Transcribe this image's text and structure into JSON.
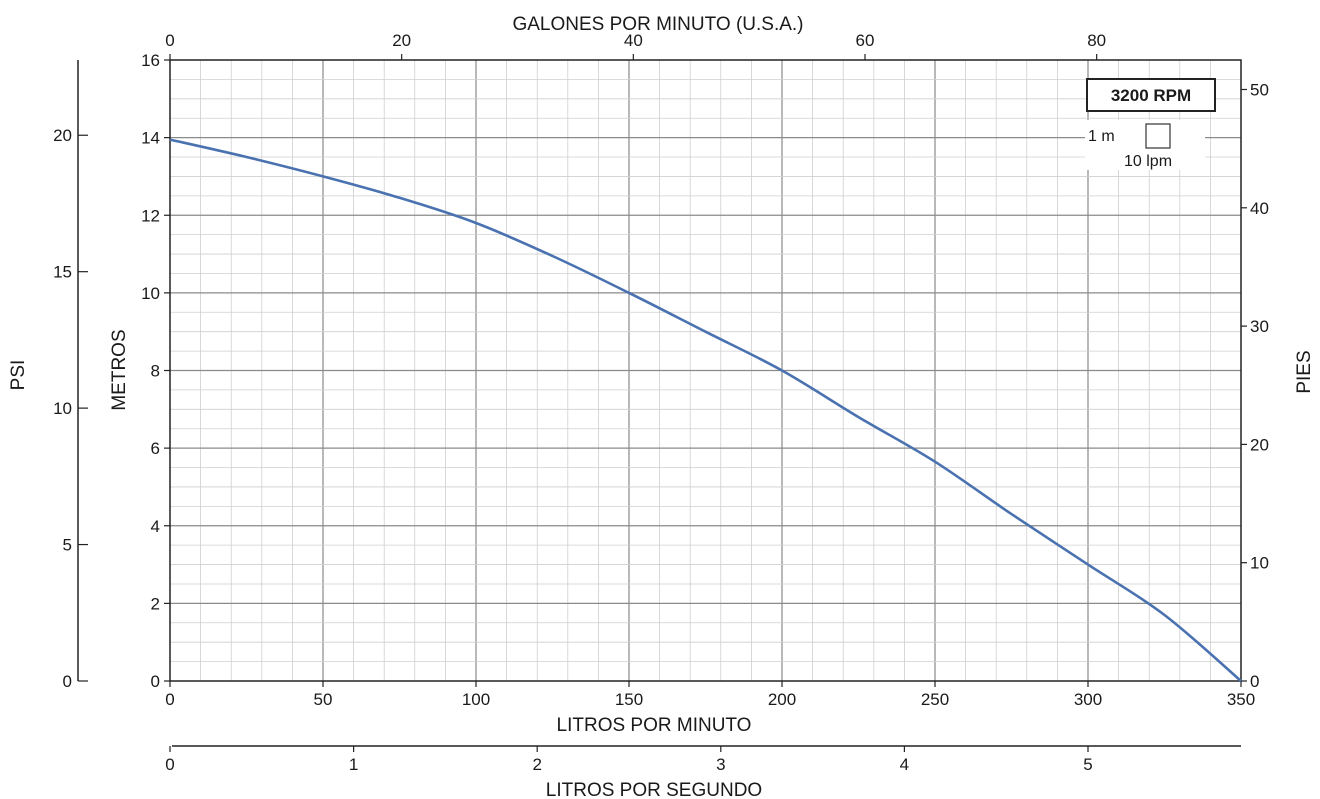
{
  "chart_data": {
    "type": "line",
    "rpm_label": "3200 RPM",
    "legend": {
      "meters": "1 m",
      "lpm": "10 lpm"
    },
    "x_bottom": {
      "label": "LITROS POR MINUTO",
      "range": [
        0,
        350
      ],
      "ticks": [
        "0",
        "50",
        "100",
        "150",
        "200",
        "250",
        "300",
        "350"
      ]
    },
    "x_top": {
      "label": "GALONES POR MINUTO (U.S.A.)",
      "ticks": [
        "0",
        "20",
        "40",
        "60",
        "80"
      ]
    },
    "x_lps": {
      "label": "LITROS POR SEGUNDO",
      "ticks": [
        "0",
        "1",
        "2",
        "3",
        "4",
        "5"
      ]
    },
    "y_left": {
      "label": "METROS",
      "range": [
        0,
        16
      ],
      "ticks": [
        "0",
        "2",
        "4",
        "6",
        "8",
        "10",
        "12",
        "14",
        "16"
      ]
    },
    "y_psi": {
      "label": "PSI",
      "ticks": [
        "0",
        "5",
        "10",
        "15",
        "20"
      ]
    },
    "y_right": {
      "label": "PIES",
      "ticks": [
        "0",
        "10",
        "20",
        "30",
        "40",
        "50"
      ]
    },
    "series": [
      {
        "color": "#4a72b0",
        "points": [
          [
            0,
            13.95
          ],
          [
            25,
            13.5
          ],
          [
            50,
            13.0
          ],
          [
            75,
            12.45
          ],
          [
            100,
            11.8
          ],
          [
            125,
            10.95
          ],
          [
            150,
            10.0
          ],
          [
            175,
            9.0
          ],
          [
            200,
            8.0
          ],
          [
            225,
            6.8
          ],
          [
            250,
            5.65
          ],
          [
            275,
            4.3
          ],
          [
            300,
            3.0
          ],
          [
            325,
            1.7
          ],
          [
            350,
            0.0
          ]
        ]
      }
    ]
  }
}
